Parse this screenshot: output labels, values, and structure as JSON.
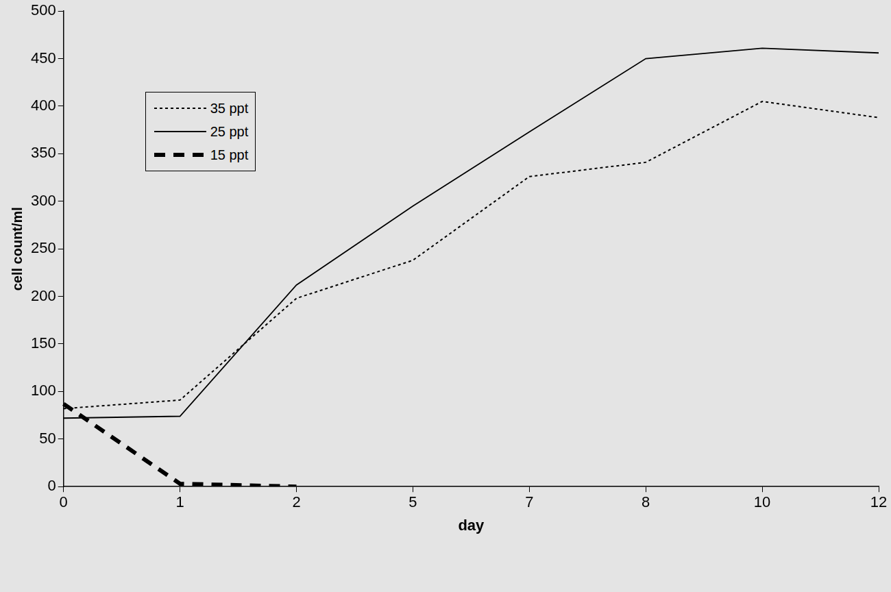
{
  "chart_data": {
    "type": "line",
    "xlabel": "day",
    "ylabel": "cell count/ml",
    "categories": [
      "0",
      "1",
      "2",
      "5",
      "7",
      "8",
      "10",
      "12"
    ],
    "ylim": [
      0,
      500
    ],
    "yticks": [
      0,
      50,
      100,
      150,
      200,
      250,
      300,
      350,
      400,
      450,
      500
    ],
    "grid": false,
    "legend": "upper left",
    "series": [
      {
        "name": "35 ppt",
        "color": "#000000",
        "line_style": "dotted",
        "values": [
          82,
          91,
          198,
          238,
          326,
          341,
          405,
          388
        ]
      },
      {
        "name": "25 ppt",
        "color": "#000000",
        "line_style": "solid",
        "values": [
          72,
          74,
          212,
          295,
          373,
          450,
          461,
          456
        ]
      },
      {
        "name": "15 ppt",
        "color": "#000000",
        "line_style": "dashed",
        "values": [
          87,
          3,
          0,
          null,
          null,
          null,
          null,
          null
        ]
      }
    ]
  }
}
